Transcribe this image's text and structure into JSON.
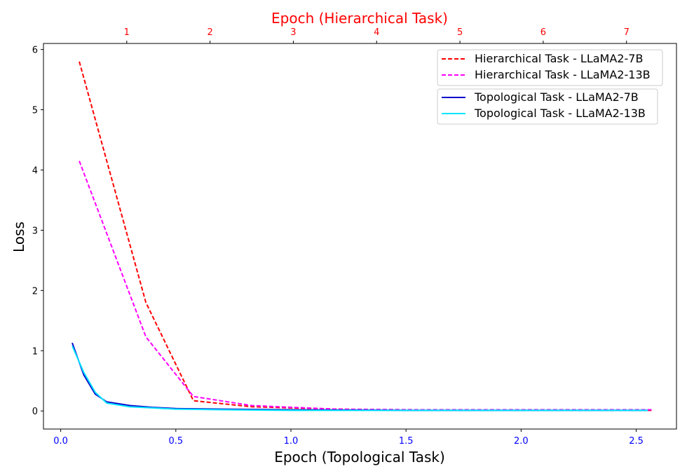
{
  "chart_data": {
    "type": "line",
    "title": "Epoch (Hierarchical Task)",
    "xlabel": "Epoch (Topological Task)",
    "ylabel": "Loss",
    "x_bottom": {
      "ticks": [
        0.0,
        0.5,
        1.0,
        1.5,
        2.0,
        2.5
      ],
      "tick_labels": [
        "0.0",
        "0.5",
        "1.0",
        "1.5",
        "2.0",
        "2.5"
      ],
      "lim": [
        -0.075,
        2.675
      ],
      "color": "#0000ff"
    },
    "x_top": {
      "ticks": [
        1,
        2,
        3,
        4,
        5,
        6,
        7
      ],
      "tick_labels": [
        "1",
        "2",
        "3",
        "4",
        "5",
        "6",
        "7"
      ],
      "lim": [
        0.0,
        7.6
      ],
      "color": "#ff0000"
    },
    "y": {
      "ticks": [
        0,
        1,
        2,
        3,
        4,
        5,
        6
      ],
      "tick_labels": [
        "0",
        "1",
        "2",
        "3",
        "4",
        "5",
        "6"
      ],
      "lim": [
        -0.3,
        6.1
      ]
    },
    "grid": false,
    "legends": [
      {
        "placement": "top-right",
        "entries": [
          "Hierarchical Task - LLaMA2-7B",
          "Hierarchical Task - LLaMA2-13B"
        ]
      },
      {
        "placement": "top-right-below",
        "entries": [
          "Topological Task - LLaMA2-7B",
          "Topological Task - LLaMA2-13B"
        ]
      }
    ],
    "series": [
      {
        "name": "Hierarchical Task - LLaMA2-7B",
        "axis": "top",
        "style": "dashed",
        "color": "#ff0000",
        "x": [
          0.43,
          1.23,
          1.8,
          2.5,
          3.5,
          4.5,
          5.5,
          6.5,
          7.3
        ],
        "y": [
          5.8,
          1.8,
          0.17,
          0.07,
          0.03,
          0.01,
          0.01,
          0.01,
          0.01
        ]
      },
      {
        "name": "Hierarchical Task - LLaMA2-13B",
        "axis": "top",
        "style": "dashed",
        "color": "#ff00ff",
        "x": [
          0.43,
          1.23,
          1.8,
          2.5,
          3.5,
          4.5,
          5.5,
          6.5,
          7.3
        ],
        "y": [
          4.15,
          1.23,
          0.24,
          0.09,
          0.03,
          0.02,
          0.02,
          0.02,
          0.02
        ]
      },
      {
        "name": "Topological Task - LLaMA2-7B",
        "axis": "bottom",
        "style": "solid",
        "color": "#0000cd",
        "x": [
          0.05,
          0.1,
          0.15,
          0.2,
          0.25,
          0.3,
          0.4,
          0.5,
          0.7,
          1.0,
          1.5,
          2.0,
          2.55
        ],
        "y": [
          1.13,
          0.6,
          0.28,
          0.15,
          0.12,
          0.09,
          0.06,
          0.04,
          0.03,
          0.02,
          0.01,
          0.01,
          0.01
        ]
      },
      {
        "name": "Topological Task - LLaMA2-13B",
        "axis": "bottom",
        "style": "solid",
        "color": "#00e5ff",
        "x": [
          0.05,
          0.1,
          0.15,
          0.2,
          0.25,
          0.3,
          0.4,
          0.5,
          0.7,
          1.0,
          1.5,
          2.0,
          2.55
        ],
        "y": [
          1.08,
          0.64,
          0.31,
          0.13,
          0.1,
          0.07,
          0.05,
          0.03,
          0.02,
          0.01,
          0.01,
          0.01,
          0.01
        ]
      }
    ]
  }
}
